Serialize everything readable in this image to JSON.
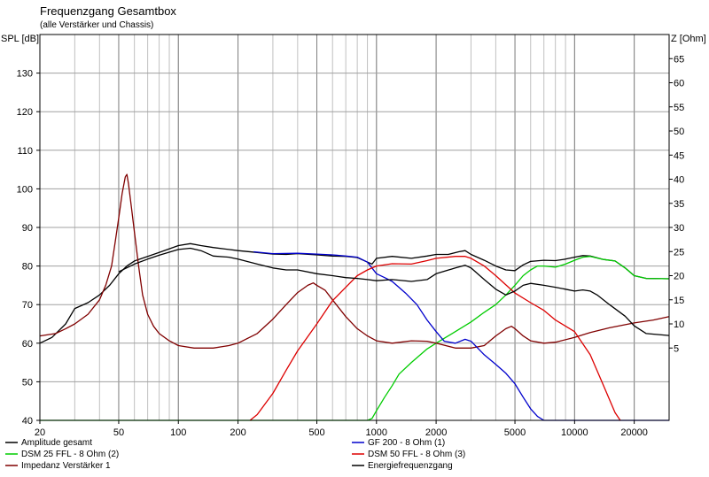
{
  "chart_data": {
    "type": "line",
    "title": "Frequenzgang Gesamtbox",
    "subtitle": "(alle Verstärker und Chassis)",
    "ylabel_left": "SPL [dB]",
    "ylabel_right": "Z [Ohm]",
    "x_scale": "log",
    "xlim": [
      20,
      30000
    ],
    "ylim_left": [
      40,
      140
    ],
    "ylim_right": [
      -10,
      70
    ],
    "x_ticks": [
      {
        "value": 20,
        "label": "20"
      },
      {
        "value": 50,
        "label": "50"
      },
      {
        "value": 100,
        "label": "100"
      },
      {
        "value": 200,
        "label": "200"
      },
      {
        "value": 500,
        "label": "500"
      },
      {
        "value": 1000,
        "label": "1000"
      },
      {
        "value": 2000,
        "label": "2000"
      },
      {
        "value": 5000,
        "label": "5000"
      },
      {
        "value": 10000,
        "label": "10000"
      },
      {
        "value": 20000,
        "label": "20000"
      }
    ],
    "y_ticks_left": [
      {
        "value": 40,
        "label": "40"
      },
      {
        "value": 50,
        "label": "50"
      },
      {
        "value": 60,
        "label": "60"
      },
      {
        "value": 70,
        "label": "70"
      },
      {
        "value": 80,
        "label": "80"
      },
      {
        "value": 90,
        "label": "90"
      },
      {
        "value": 100,
        "label": "100"
      },
      {
        "value": 110,
        "label": "110"
      },
      {
        "value": 120,
        "label": "120"
      },
      {
        "value": 130,
        "label": "130"
      }
    ],
    "y_ticks_right": [
      {
        "value": 5,
        "label": "5"
      },
      {
        "value": 10,
        "label": "10"
      },
      {
        "value": 15,
        "label": "15"
      },
      {
        "value": 20,
        "label": "20"
      },
      {
        "value": 25,
        "label": "25"
      },
      {
        "value": 30,
        "label": "30"
      },
      {
        "value": 35,
        "label": "35"
      },
      {
        "value": 40,
        "label": "40"
      },
      {
        "value": 45,
        "label": "45"
      },
      {
        "value": 50,
        "label": "50"
      },
      {
        "value": 55,
        "label": "55"
      },
      {
        "value": 60,
        "label": "60"
      },
      {
        "value": 65,
        "label": "65"
      }
    ],
    "grid": true,
    "legend_position": "bottom",
    "series": [
      {
        "name": "Amplitude gesamt",
        "color": "#000000",
        "axis": "left",
        "points": [
          [
            20,
            60
          ],
          [
            23,
            61.5
          ],
          [
            27,
            65
          ],
          [
            30,
            69
          ],
          [
            35,
            70.5
          ],
          [
            40,
            72.5
          ],
          [
            45,
            75
          ],
          [
            50,
            78
          ],
          [
            55,
            80
          ],
          [
            60,
            81.3
          ],
          [
            70,
            82.5
          ],
          [
            80,
            83.5
          ],
          [
            100,
            85.3
          ],
          [
            115,
            85.8
          ],
          [
            130,
            85.3
          ],
          [
            150,
            84.8
          ],
          [
            180,
            84.3
          ],
          [
            200,
            84
          ],
          [
            250,
            83.5
          ],
          [
            300,
            83.1
          ],
          [
            350,
            83
          ],
          [
            400,
            83.2
          ],
          [
            500,
            82.9
          ],
          [
            600,
            82.6
          ],
          [
            700,
            82.5
          ],
          [
            800,
            82.2
          ],
          [
            900,
            81
          ],
          [
            950,
            80.5
          ],
          [
            1000,
            82
          ],
          [
            1200,
            82.5
          ],
          [
            1500,
            82
          ],
          [
            1800,
            82.6
          ],
          [
            2000,
            83
          ],
          [
            2300,
            83
          ],
          [
            2600,
            83.7
          ],
          [
            2800,
            84
          ],
          [
            3000,
            83
          ],
          [
            3500,
            81.5
          ],
          [
            4000,
            80
          ],
          [
            4500,
            79
          ],
          [
            5000,
            78.8
          ],
          [
            5500,
            80.3
          ],
          [
            6000,
            81.2
          ],
          [
            7000,
            81.5
          ],
          [
            8000,
            81.4
          ],
          [
            9000,
            81.8
          ],
          [
            10000,
            82.3
          ],
          [
            11000,
            82.7
          ],
          [
            12000,
            82.6
          ],
          [
            14000,
            81.7
          ],
          [
            16000,
            81.3
          ],
          [
            18000,
            79.5
          ],
          [
            20000,
            77.5
          ],
          [
            23000,
            76.8
          ],
          [
            30000,
            76.7
          ]
        ]
      },
      {
        "name": "DSM 25 FFL - 8 Ohm (2)",
        "color": "#00cc00",
        "axis": "left",
        "points": [
          [
            20,
            40
          ],
          [
            900,
            40
          ],
          [
            950,
            40.5
          ],
          [
            1000,
            42.5
          ],
          [
            1100,
            46
          ],
          [
            1200,
            49
          ],
          [
            1300,
            52
          ],
          [
            1500,
            55
          ],
          [
            1800,
            58.5
          ],
          [
            2000,
            60
          ],
          [
            2500,
            63
          ],
          [
            3000,
            65.5
          ],
          [
            3500,
            68
          ],
          [
            4000,
            70
          ],
          [
            4500,
            72.5
          ],
          [
            5000,
            75
          ],
          [
            5500,
            77.5
          ],
          [
            6000,
            79
          ],
          [
            6500,
            80
          ],
          [
            7000,
            80
          ],
          [
            8000,
            79.7
          ],
          [
            9000,
            80.5
          ],
          [
            10000,
            81.5
          ],
          [
            11000,
            82.3
          ],
          [
            12000,
            82.5
          ],
          [
            14000,
            81.7
          ],
          [
            16000,
            81.3
          ],
          [
            18000,
            79.5
          ],
          [
            20000,
            77.5
          ],
          [
            23000,
            76.8
          ],
          [
            30000,
            76.7
          ]
        ]
      },
      {
        "name": "Impedanz Verstärker 1",
        "color": "#800000",
        "axis": "right",
        "points": [
          [
            20,
            7.5
          ],
          [
            24,
            8
          ],
          [
            27,
            9
          ],
          [
            30,
            10
          ],
          [
            35,
            12
          ],
          [
            40,
            15
          ],
          [
            43,
            18
          ],
          [
            46,
            22
          ],
          [
            48,
            27
          ],
          [
            50,
            32
          ],
          [
            52,
            37
          ],
          [
            54,
            40.5
          ],
          [
            55,
            41
          ],
          [
            56,
            39
          ],
          [
            58,
            34
          ],
          [
            60,
            29
          ],
          [
            63,
            22
          ],
          [
            66,
            16
          ],
          [
            70,
            12
          ],
          [
            75,
            9.5
          ],
          [
            80,
            8
          ],
          [
            90,
            6.5
          ],
          [
            100,
            5.5
          ],
          [
            120,
            5
          ],
          [
            150,
            5
          ],
          [
            180,
            5.5
          ],
          [
            200,
            6
          ],
          [
            250,
            8
          ],
          [
            300,
            11
          ],
          [
            350,
            14
          ],
          [
            400,
            16.5
          ],
          [
            450,
            18
          ],
          [
            480,
            18.5
          ],
          [
            500,
            18
          ],
          [
            550,
            17
          ],
          [
            600,
            15
          ],
          [
            700,
            11.5
          ],
          [
            800,
            9
          ],
          [
            900,
            7.5
          ],
          [
            1000,
            6.5
          ],
          [
            1200,
            6
          ],
          [
            1500,
            6.5
          ],
          [
            1800,
            6.4
          ],
          [
            2000,
            6
          ],
          [
            2500,
            5
          ],
          [
            3000,
            5
          ],
          [
            3500,
            5.5
          ],
          [
            4000,
            7.5
          ],
          [
            4500,
            9
          ],
          [
            4800,
            9.5
          ],
          [
            5000,
            9
          ],
          [
            5500,
            7.5
          ],
          [
            6000,
            6.5
          ],
          [
            7000,
            6
          ],
          [
            8000,
            6.2
          ],
          [
            10000,
            7.2
          ],
          [
            12000,
            8.2
          ],
          [
            15000,
            9.2
          ],
          [
            20000,
            10.2
          ],
          [
            25000,
            10.8
          ],
          [
            30000,
            11.5
          ]
        ]
      },
      {
        "name": "GF 200 - 8 Ohm (1)",
        "color": "#0000cc",
        "axis": "left",
        "points": [
          [
            240,
            83.7
          ],
          [
            300,
            83.2
          ],
          [
            400,
            83.3
          ],
          [
            500,
            83.1
          ],
          [
            600,
            82.9
          ],
          [
            700,
            82.6
          ],
          [
            800,
            82.3
          ],
          [
            900,
            81
          ],
          [
            1000,
            78
          ],
          [
            1100,
            77
          ],
          [
            1200,
            76
          ],
          [
            1400,
            73
          ],
          [
            1600,
            70
          ],
          [
            1800,
            66
          ],
          [
            2000,
            63
          ],
          [
            2200,
            60.5
          ],
          [
            2500,
            60
          ],
          [
            2800,
            61
          ],
          [
            3000,
            60.5
          ],
          [
            3500,
            57
          ],
          [
            4000,
            54.5
          ],
          [
            4500,
            52.2
          ],
          [
            5000,
            49.5
          ],
          [
            5500,
            46
          ],
          [
            6000,
            43
          ],
          [
            6500,
            41
          ],
          [
            7000,
            40
          ],
          [
            30000,
            40
          ]
        ]
      },
      {
        "name": "DSM 50 FFL - 8 Ohm (3)",
        "color": "#dd0000",
        "axis": "left",
        "points": [
          [
            230,
            40
          ],
          [
            250,
            41.5
          ],
          [
            300,
            47
          ],
          [
            350,
            53
          ],
          [
            400,
            58
          ],
          [
            500,
            65
          ],
          [
            600,
            71
          ],
          [
            700,
            74.5
          ],
          [
            800,
            77.5
          ],
          [
            900,
            79
          ],
          [
            1000,
            80
          ],
          [
            1200,
            80.6
          ],
          [
            1500,
            80.5
          ],
          [
            1800,
            81.4
          ],
          [
            2000,
            82
          ],
          [
            2500,
            82.5
          ],
          [
            2800,
            82.5
          ],
          [
            3000,
            82
          ],
          [
            3500,
            80
          ],
          [
            4000,
            77.5
          ],
          [
            5000,
            73
          ],
          [
            6000,
            70.5
          ],
          [
            7000,
            68.5
          ],
          [
            8000,
            66
          ],
          [
            10000,
            63
          ],
          [
            12000,
            57
          ],
          [
            14000,
            49
          ],
          [
            16000,
            42
          ],
          [
            17000,
            40
          ]
        ]
      },
      {
        "name": "Energiefrequenzgang",
        "color": "#000000",
        "axis": "left",
        "points": [
          [
            50,
            78.5
          ],
          [
            60,
            80.5
          ],
          [
            70,
            81.8
          ],
          [
            80,
            82.8
          ],
          [
            100,
            84.3
          ],
          [
            115,
            84.6
          ],
          [
            130,
            84
          ],
          [
            150,
            82.6
          ],
          [
            180,
            82.3
          ],
          [
            200,
            81.8
          ],
          [
            250,
            80.5
          ],
          [
            300,
            79.5
          ],
          [
            350,
            79
          ],
          [
            400,
            79
          ],
          [
            500,
            78
          ],
          [
            600,
            77.5
          ],
          [
            700,
            77
          ],
          [
            800,
            76.8
          ],
          [
            900,
            76.5
          ],
          [
            1000,
            76.2
          ],
          [
            1200,
            76.5
          ],
          [
            1500,
            76
          ],
          [
            1800,
            76.5
          ],
          [
            2000,
            78
          ],
          [
            2500,
            79.5
          ],
          [
            2800,
            80.2
          ],
          [
            3000,
            79.5
          ],
          [
            3500,
            76.5
          ],
          [
            4000,
            74
          ],
          [
            4500,
            72.5
          ],
          [
            5000,
            73.5
          ],
          [
            5500,
            75
          ],
          [
            6000,
            75.5
          ],
          [
            7000,
            75
          ],
          [
            8000,
            74.5
          ],
          [
            9000,
            74
          ],
          [
            10000,
            73.5
          ],
          [
            11000,
            73.8
          ],
          [
            12000,
            73.5
          ],
          [
            13000,
            72.5
          ],
          [
            15000,
            70
          ],
          [
            18000,
            67
          ],
          [
            20000,
            64.5
          ],
          [
            23000,
            62.5
          ],
          [
            30000,
            62
          ]
        ]
      }
    ]
  }
}
